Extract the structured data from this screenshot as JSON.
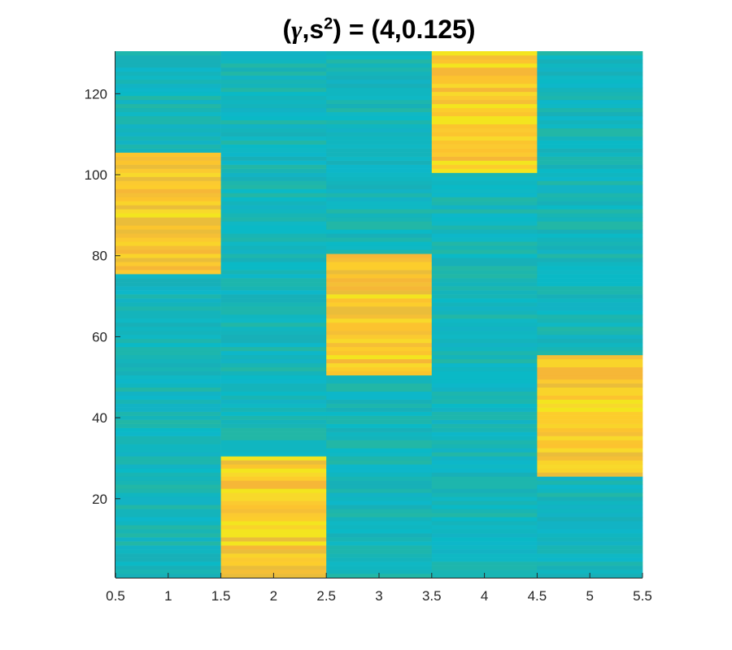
{
  "chart_data": {
    "type": "heatmap",
    "title": {
      "prefix": "(",
      "gamma": "γ",
      "mid": ",s",
      "sup": "2",
      "suffix": ") = (4,0.125)"
    },
    "xlabel": "",
    "ylabel": "",
    "xlim": [
      0.5,
      5.5
    ],
    "ylim": [
      0.5,
      130.5
    ],
    "x_ticks": [
      0.5,
      1,
      1.5,
      2,
      2.5,
      3,
      3.5,
      4,
      4.5,
      5,
      5.5
    ],
    "x_tick_labels": [
      "0.5",
      "1",
      "1.5",
      "2",
      "2.5",
      "3",
      "3.5",
      "4",
      "4.5",
      "5",
      "5.5"
    ],
    "y_ticks": [
      20,
      40,
      60,
      80,
      100,
      120
    ],
    "y_tick_labels": [
      "20",
      "40",
      "60",
      "80",
      "100",
      "120"
    ],
    "columns": [
      1,
      2,
      3,
      4,
      5
    ],
    "rows": 130,
    "colormap": "parula",
    "background_value": 0.0,
    "high_blocks": [
      {
        "column": 1,
        "row_start": 76,
        "row_end": 105,
        "value": 1.0
      },
      {
        "column": 2,
        "row_start": 1,
        "row_end": 30,
        "value": 1.0
      },
      {
        "column": 3,
        "row_start": 51,
        "row_end": 80,
        "value": 1.0
      },
      {
        "column": 4,
        "row_start": 101,
        "row_end": 130,
        "value": 1.0
      },
      {
        "column": 5,
        "row_start": 26,
        "row_end": 55,
        "value": 1.0
      }
    ],
    "colors": {
      "low": "#12b6bd",
      "high": "#fbc52e",
      "axis": "#262626"
    },
    "grid": false,
    "legend": "none"
  }
}
